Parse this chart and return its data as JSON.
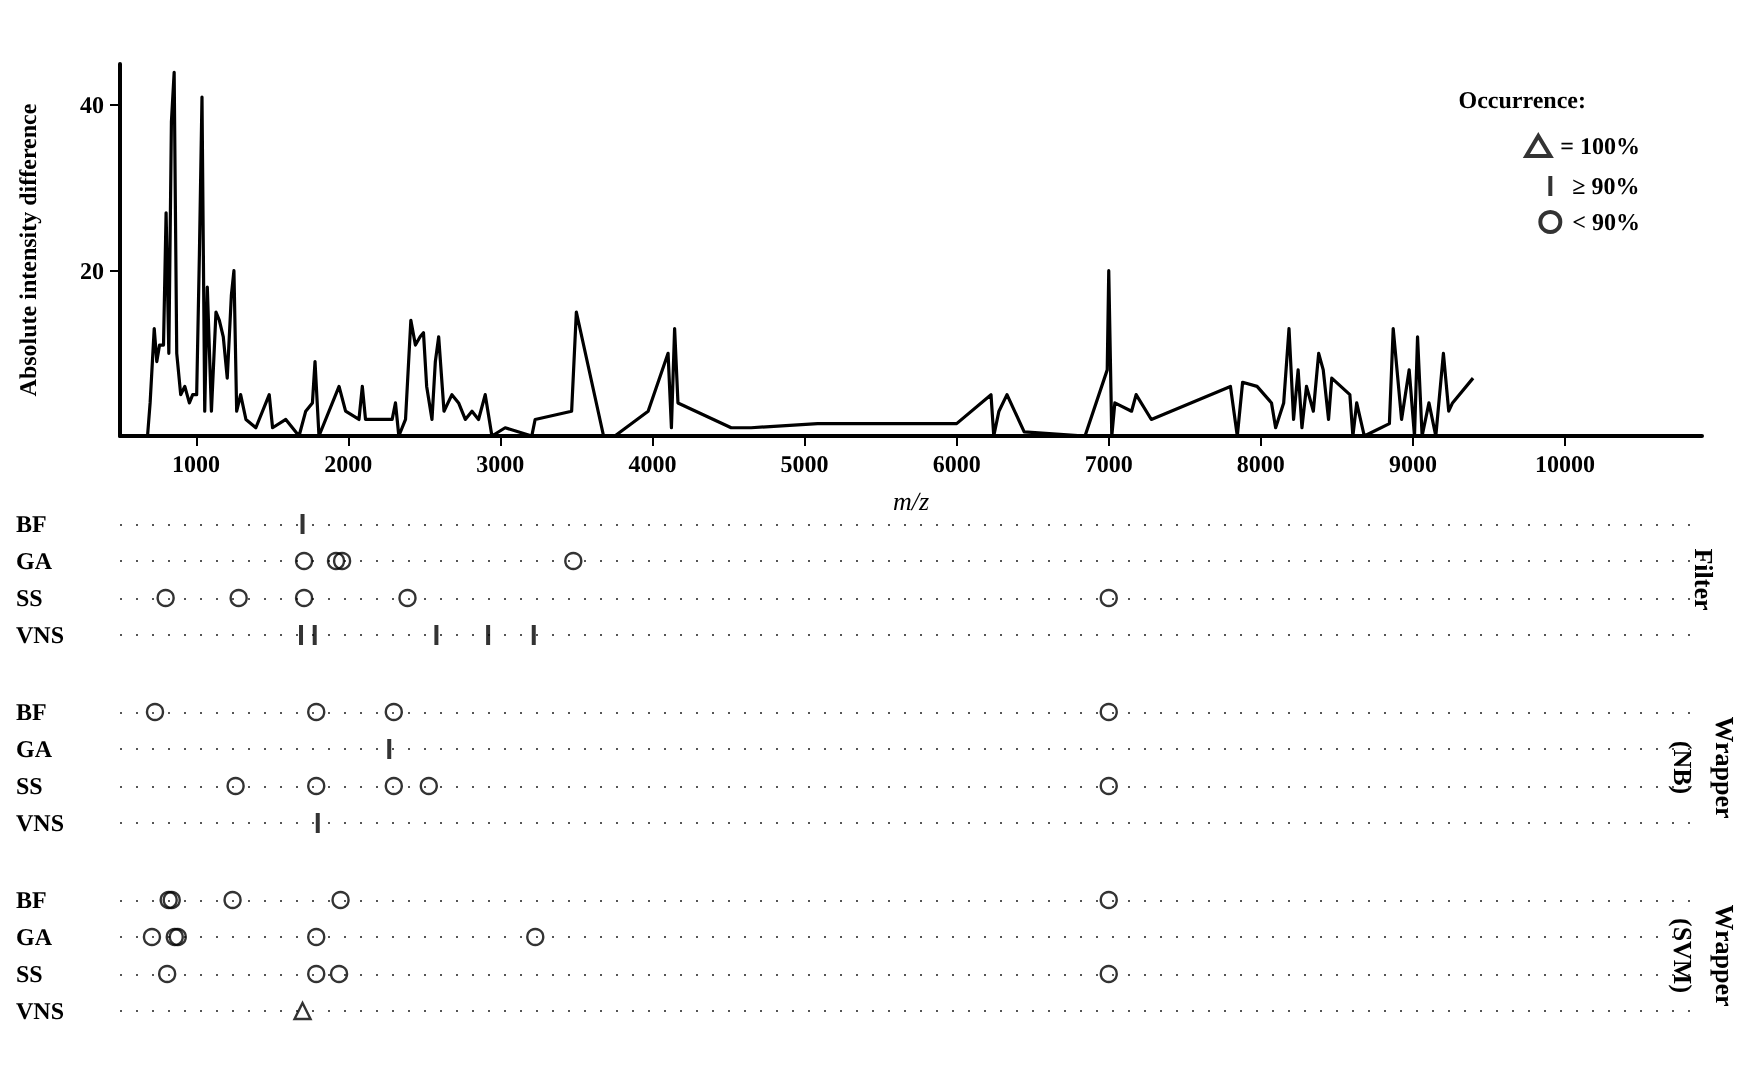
{
  "chart_data": [
    {
      "type": "line",
      "xlabel": "m/z",
      "ylabel": "Absolute intensity difference",
      "xlim": [
        500,
        10900
      ],
      "xticks": [
        1000,
        2000,
        3000,
        4000,
        5000,
        6000,
        7000,
        8000,
        9000,
        10000
      ],
      "ylim": [
        0,
        45
      ],
      "yticks": [
        20,
        40
      ],
      "color": "#000000",
      "marker": "none",
      "x": [
        681,
        698,
        725,
        742,
        760,
        786,
        803,
        821,
        838,
        856,
        873,
        899,
        926,
        956,
        978,
        1004,
        1022,
        1039,
        1057,
        1074,
        1101,
        1131,
        1153,
        1179,
        1205,
        1232,
        1249,
        1267,
        1293,
        1328,
        1393,
        1481,
        1503,
        1590,
        1677,
        1721,
        1765,
        1782,
        1808,
        1940,
        1983,
        2071,
        2093,
        2114,
        2289,
        2311,
        2333,
        2377,
        2412,
        2442,
        2473,
        2495,
        2516,
        2551,
        2573,
        2595,
        2630,
        2682,
        2726,
        2770,
        2814,
        2857,
        2901,
        2945,
        3032,
        3207,
        3229,
        3469,
        3500,
        3679,
        3753,
        3972,
        4103,
        4125,
        4146,
        4168,
        4518,
        4649,
        5086,
        5610,
        6000,
        6226,
        6244,
        6278,
        6331,
        6444,
        6844,
        6990,
        7000,
        7020,
        7040,
        7150,
        7180,
        7280,
        7800,
        7845,
        7880,
        7975,
        8070,
        8097,
        8150,
        8185,
        8215,
        8245,
        8270,
        8300,
        8345,
        8380,
        8410,
        8445,
        8466,
        8585,
        8605,
        8630,
        8680,
        8845,
        8870,
        8925,
        8975,
        9010,
        9030,
        9060,
        9105,
        9150,
        9200,
        9235,
        9260,
        9395
      ],
      "values": [
        0,
        4,
        13,
        9,
        11,
        11,
        27,
        10,
        38,
        44,
        10,
        5,
        6,
        4,
        5,
        5,
        22,
        41,
        3,
        18,
        3,
        15,
        14,
        12,
        7,
        17,
        20,
        3,
        5,
        2,
        1,
        5,
        1,
        2,
        0,
        3,
        4,
        9,
        0,
        6,
        3,
        2,
        6,
        2,
        2,
        4,
        0,
        2,
        14,
        11,
        12,
        12.5,
        6,
        2,
        9,
        12,
        3,
        5,
        4,
        2,
        3,
        2,
        5,
        0,
        1,
        0,
        2,
        3,
        15,
        0,
        0,
        3,
        10,
        1,
        13,
        4,
        1,
        1,
        1.5,
        1.5,
        1.5,
        5,
        0,
        3,
        5,
        0.5,
        0,
        8,
        20,
        0,
        4,
        3,
        5,
        2,
        6,
        0,
        6.5,
        6,
        4,
        1,
        4,
        13,
        2,
        8,
        1,
        6,
        3,
        10,
        8,
        2,
        7,
        5,
        0,
        4,
        0,
        1.5,
        13,
        2,
        8,
        0,
        12,
        0,
        4,
        0,
        10,
        3,
        4,
        7
      ]
    },
    {
      "type": "scatter",
      "orientation": "horizontal",
      "categories": [
        "BF",
        "GA",
        "SS",
        "VNS"
      ],
      "xlim": [
        500,
        10900
      ],
      "tick_labels": "y",
      "grid": "y",
      "annotations": [
        "Filter"
      ],
      "legend": "top right",
      "series": [
        {
          "name": "≥ 90%",
          "color": "#000000",
          "values": [
            1700,
            null,
            null,
            1690
          ]
        },
        {
          "color": "#000000",
          "values": [
            null,
            null,
            null,
            1780
          ]
        },
        {
          "color": "#000000",
          "values": [
            null,
            null,
            null,
            2580
          ]
        },
        {
          "color": "#000000",
          "values": [
            null,
            null,
            null,
            2920
          ]
        },
        {
          "color": "#000000",
          "values": [
            null,
            null,
            null,
            3220
          ]
        },
        {
          "name": "< 90%",
          "marker": "circle",
          "color": "#000000",
          "values": [
            null,
            1710,
            800,
            null
          ]
        },
        {
          "marker": "circle",
          "color": "#000000",
          "values": [
            null,
            1920,
            1280,
            null
          ]
        },
        {
          "marker": "circle",
          "color": "#000000",
          "values": [
            null,
            1960,
            1710,
            null
          ]
        },
        {
          "marker": "circle",
          "color": "#000000",
          "values": [
            null,
            3480,
            2390,
            null
          ]
        },
        {
          "marker": "circle",
          "color": "#000000",
          "values": [
            null,
            null,
            7000,
            null
          ]
        }
      ]
    },
    {
      "type": "scatter",
      "orientation": "horizontal",
      "categories": [
        "BF",
        "GA",
        "SS",
        "VNS"
      ],
      "xlim": [
        500,
        10900
      ],
      "tick_labels": "y",
      "grid": "y",
      "annotations": [
        "Wrapper (NB)"
      ],
      "series": [
        {
          "color": "#000000",
          "values": [
            null,
            2270,
            null,
            1800
          ]
        },
        {
          "marker": "circle",
          "color": "#000000",
          "values": [
            730,
            null,
            1260,
            null
          ]
        },
        {
          "marker": "circle",
          "color": "#000000",
          "values": [
            1790,
            null,
            1790,
            null
          ]
        },
        {
          "marker": "circle",
          "color": "#000000",
          "values": [
            2300,
            null,
            2300,
            null
          ]
        },
        {
          "marker": "circle",
          "color": "#000000",
          "values": [
            7000,
            null,
            2530,
            null
          ]
        },
        {
          "marker": "circle",
          "color": "#000000",
          "values": [
            null,
            null,
            7000,
            null
          ]
        }
      ]
    },
    {
      "type": "scatter",
      "orientation": "horizontal",
      "categories": [
        "BF",
        "GA",
        "SS",
        "VNS"
      ],
      "xlim": [
        500,
        10900
      ],
      "tick_labels": "y",
      "grid": "y",
      "annotations": [
        "Wrapper (SVM)"
      ],
      "legend": "top right",
      "legend_title": "Occurrence:",
      "series": [
        {
          "name": "= 100%",
          "marker": "triangle",
          "color": "#000000",
          "values": [
            null,
            null,
            null,
            1700
          ]
        },
        {
          "marker": "circle",
          "color": "#000000",
          "values": [
            820,
            710,
            810,
            null
          ]
        },
        {
          "marker": "circle",
          "color": "#000000",
          "values": [
            840,
            860,
            1790,
            null
          ]
        },
        {
          "marker": "circle",
          "color": "#000000",
          "values": [
            1240,
            880,
            1940,
            null
          ]
        },
        {
          "marker": "circle",
          "color": "#000000",
          "values": [
            1950,
            1790,
            7000,
            null
          ]
        },
        {
          "marker": "circle",
          "color": "#000000",
          "values": [
            7000,
            3230,
            null,
            null
          ]
        }
      ]
    }
  ]
}
